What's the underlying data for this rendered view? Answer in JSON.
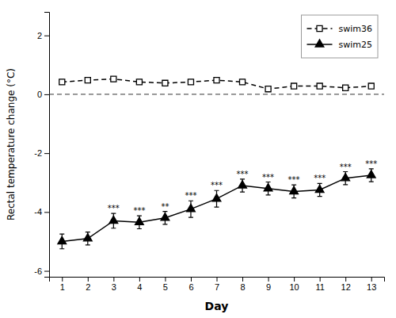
{
  "chart_data": {
    "type": "line",
    "x": [
      1,
      2,
      3,
      4,
      5,
      6,
      7,
      8,
      9,
      10,
      11,
      12,
      13
    ],
    "xlabel": "Day",
    "ylabel": "Rectal temperature change (°C)",
    "series": [
      {
        "name": "swim36",
        "color": "black",
        "marker": "square-open",
        "line_style": "dashed",
        "values": [
          0.42,
          0.48,
          0.52,
          0.42,
          0.38,
          0.42,
          0.48,
          0.42,
          0.18,
          0.28,
          0.28,
          0.22,
          0.28
        ],
        "errors": [
          0.08,
          0.08,
          0.08,
          0.08,
          0.08,
          0.08,
          0.08,
          0.08,
          0.08,
          0.08,
          0.08,
          0.08,
          0.08
        ]
      },
      {
        "name": "swim25",
        "color": "black",
        "marker": "triangle",
        "line_style": "solid",
        "values": [
          -5.0,
          -4.9,
          -4.3,
          -4.35,
          -4.2,
          -3.9,
          -3.55,
          -3.1,
          -3.2,
          -3.3,
          -3.25,
          -2.85,
          -2.75
        ],
        "errors": [
          0.25,
          0.22,
          0.25,
          0.22,
          0.22,
          0.28,
          0.28,
          0.22,
          0.22,
          0.22,
          0.22,
          0.22,
          0.22
        ]
      }
    ],
    "annotations": [
      {
        "x": 3,
        "series": "swim25",
        "text": "***"
      },
      {
        "x": 4,
        "series": "swim25",
        "text": "***"
      },
      {
        "x": 5,
        "series": "swim25",
        "text": "**"
      },
      {
        "x": 6,
        "series": "swim25",
        "text": "***"
      },
      {
        "x": 7,
        "series": "swim25",
        "text": "***"
      },
      {
        "x": 8,
        "series": "swim25",
        "text": "***"
      },
      {
        "x": 9,
        "series": "swim25",
        "text": "***"
      },
      {
        "x": 10,
        "series": "swim25",
        "text": "***"
      },
      {
        "x": 11,
        "series": "swim25",
        "text": "***"
      },
      {
        "x": 12,
        "series": "swim25",
        "text": "***"
      },
      {
        "x": 13,
        "series": "swim25",
        "text": "***"
      }
    ],
    "xlim": [
      0.5,
      13.5
    ],
    "xticks": [
      1,
      2,
      3,
      4,
      5,
      6,
      7,
      8,
      9,
      10,
      11,
      12,
      13
    ],
    "ylim": [
      -6.2,
      2.8
    ],
    "yticks": [
      -6,
      -4,
      -2,
      0,
      2
    ],
    "legend": "upper right"
  }
}
